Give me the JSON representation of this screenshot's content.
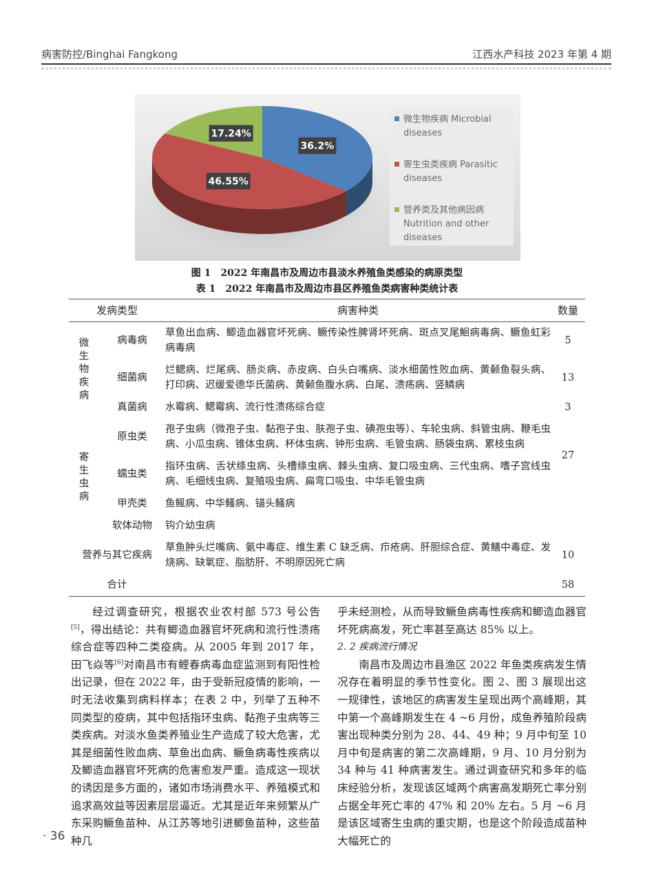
{
  "header": {
    "left": "病害防控/Binghai  Fangkong",
    "right": "江西水产科技 2023 年第 4 期"
  },
  "chart_data": {
    "type": "pie",
    "style": "3d",
    "legend_position": "right",
    "slices": [
      {
        "label": "微生物疾病 Microbial diseases",
        "label_lines": [
          "微生物疾病 Microbial",
          "diseases"
        ],
        "value": 36.2,
        "display": "36.2%",
        "color": "#4f81bd"
      },
      {
        "label": "寄生虫类疾病 Parasitic diseases",
        "label_lines": [
          "寄生虫类疾病 Parasitic",
          "diseases"
        ],
        "value": 46.55,
        "display": "46.55%",
        "color": "#c0504d"
      },
      {
        "label": "营养类及其他病因病 Nutrition and other diseases",
        "label_lines": [
          "营养类及其他病因病",
          "Nutrition and other",
          "diseases"
        ],
        "value": 17.24,
        "display": "17.24%",
        "color": "#9bbb59"
      }
    ]
  },
  "figure_caption": "图 1　2022 年南昌市及周边市县淡水养殖鱼类感染的病原类型",
  "table": {
    "caption": "表 1　2022 年南昌市及周边市县区养殖鱼类病害种类统计表",
    "headers": [
      "发病类型",
      "病害种类",
      "数量"
    ],
    "groups": [
      {
        "name": "微生物疾病",
        "rows": [
          {
            "sub": "病毒病",
            "content": "草鱼出血病、鲫造血器官坏死病、鳜传染性脾肾坏死病、斑点叉尾鮰病毒病、鳜鱼虹彩病毒病",
            "count": "5"
          },
          {
            "sub": "细菌病",
            "content": "烂鳃病、烂尾病、肠炎病、赤皮病、白头白嘴病、淡水细菌性败血病、黄颡鱼裂头病、打印病、迟缓爱德华氏菌病、黄颡鱼腹水病、白尾、溃疡病、竖鳞病",
            "count": "13"
          },
          {
            "sub": "真菌病",
            "content": "水霉病、鳃霉病、流行性溃疡综合症",
            "count": "3"
          }
        ]
      },
      {
        "name": "寄生虫病",
        "count": "27",
        "rows": [
          {
            "sub": "原虫类",
            "content": "孢子虫病（微孢子虫、黏孢子虫、肤孢子虫、碘孢虫等）、车轮虫病、斜管虫病、鞭毛虫病、小瓜虫病、锥体虫病、杯体虫病、钟形虫病、毛管虫病、肠袋虫病、累枝虫病"
          },
          {
            "sub": "蠕虫类",
            "content": "指环虫病、舌状绦虫病、头槽绦虫病、棘头虫病、复口吸虫病、三代虫病、嗜子宫线虫病、毛细线虫病、复殖吸虫病、扁弯口吸虫、中华毛管虫病"
          },
          {
            "sub": "甲壳类",
            "content": "鱼鲺病、中华鳋病、锚头鳋病"
          },
          {
            "sub": "软体动物",
            "content": "钩介幼虫病"
          }
        ]
      },
      {
        "name": "营养与其它疾病",
        "content": "草鱼肿头烂嘴病、氨中毒症、维生素 C 缺乏病、疖疮病、肝胆综合症、黄鳝中毒症、发烧病、缺氧症、脂肪肝、不明原因死亡病",
        "count": "10"
      }
    ],
    "total_label": "合计",
    "total": "58"
  },
  "body": {
    "left_p1_a": "经过调查研究，根据农业农村部 573 号公告",
    "ref5": "[5]",
    "left_p1_b": "，得出结论：共有鲫造血器官坏死病和流行性溃疡综合症等四种二类疫病。从 2005 年到 2017 年，田飞焱等",
    "ref6": "[6]",
    "left_p1_c": "对南昌市有鲤春病毒血症监测到有阳性检出记录，但在 2022 年，由于受新冠疫情的影响，一时无法收集到病料样本；在表 2 中，列举了五种不同类型的疫病，其中包括指环虫病、黏孢子虫病等三类疾病。对淡水鱼类养殖业生产造成了较大危害，尤其是细菌性败血病、草鱼出血病、鳜鱼病毒性疾病以及鲫造血器官坏死病的危害愈发严重。造成这一现状的诱因是多方面的，诸如市场消费水平、养殖模式和追求高效益等因素层层逼近。尤其是近年来频繁从广东采购鳜鱼苗种、从江苏等地引进鲫鱼苗种，这些苗种几",
    "right_p1": "乎未经测检，从而导致鳜鱼病毒性疾病和鲫造血器官坏死病高发，死亡率甚至高达 85% 以上。",
    "section": "2. 2  疾病流行情况",
    "right_p2": "南昌市及周边市县渔区 2022 年鱼类疾病发生情况存在着明显的季节性变化。图 2、图 3 展现出这一规律性，该地区的病害发生呈现出两个高峰期，其中第一个高峰期发生在 4 ~6 月份，成鱼养殖阶段病害出现种类分别为 28、44、49 种；9 月中旬至 10 月中旬是病害的第二次高峰期，9 月、10 月分别为 34 种与 41 种病害发生。通过调查研究和多年的临床经验分析，发现该区域两个病害高发期死亡率分别占据全年死亡率的 47% 和 20% 左右。5 月 ~6 月是该区域寄生虫病的重灾期，也是这个阶段造成苗种大幅死亡的"
  },
  "page_number": "· 36"
}
